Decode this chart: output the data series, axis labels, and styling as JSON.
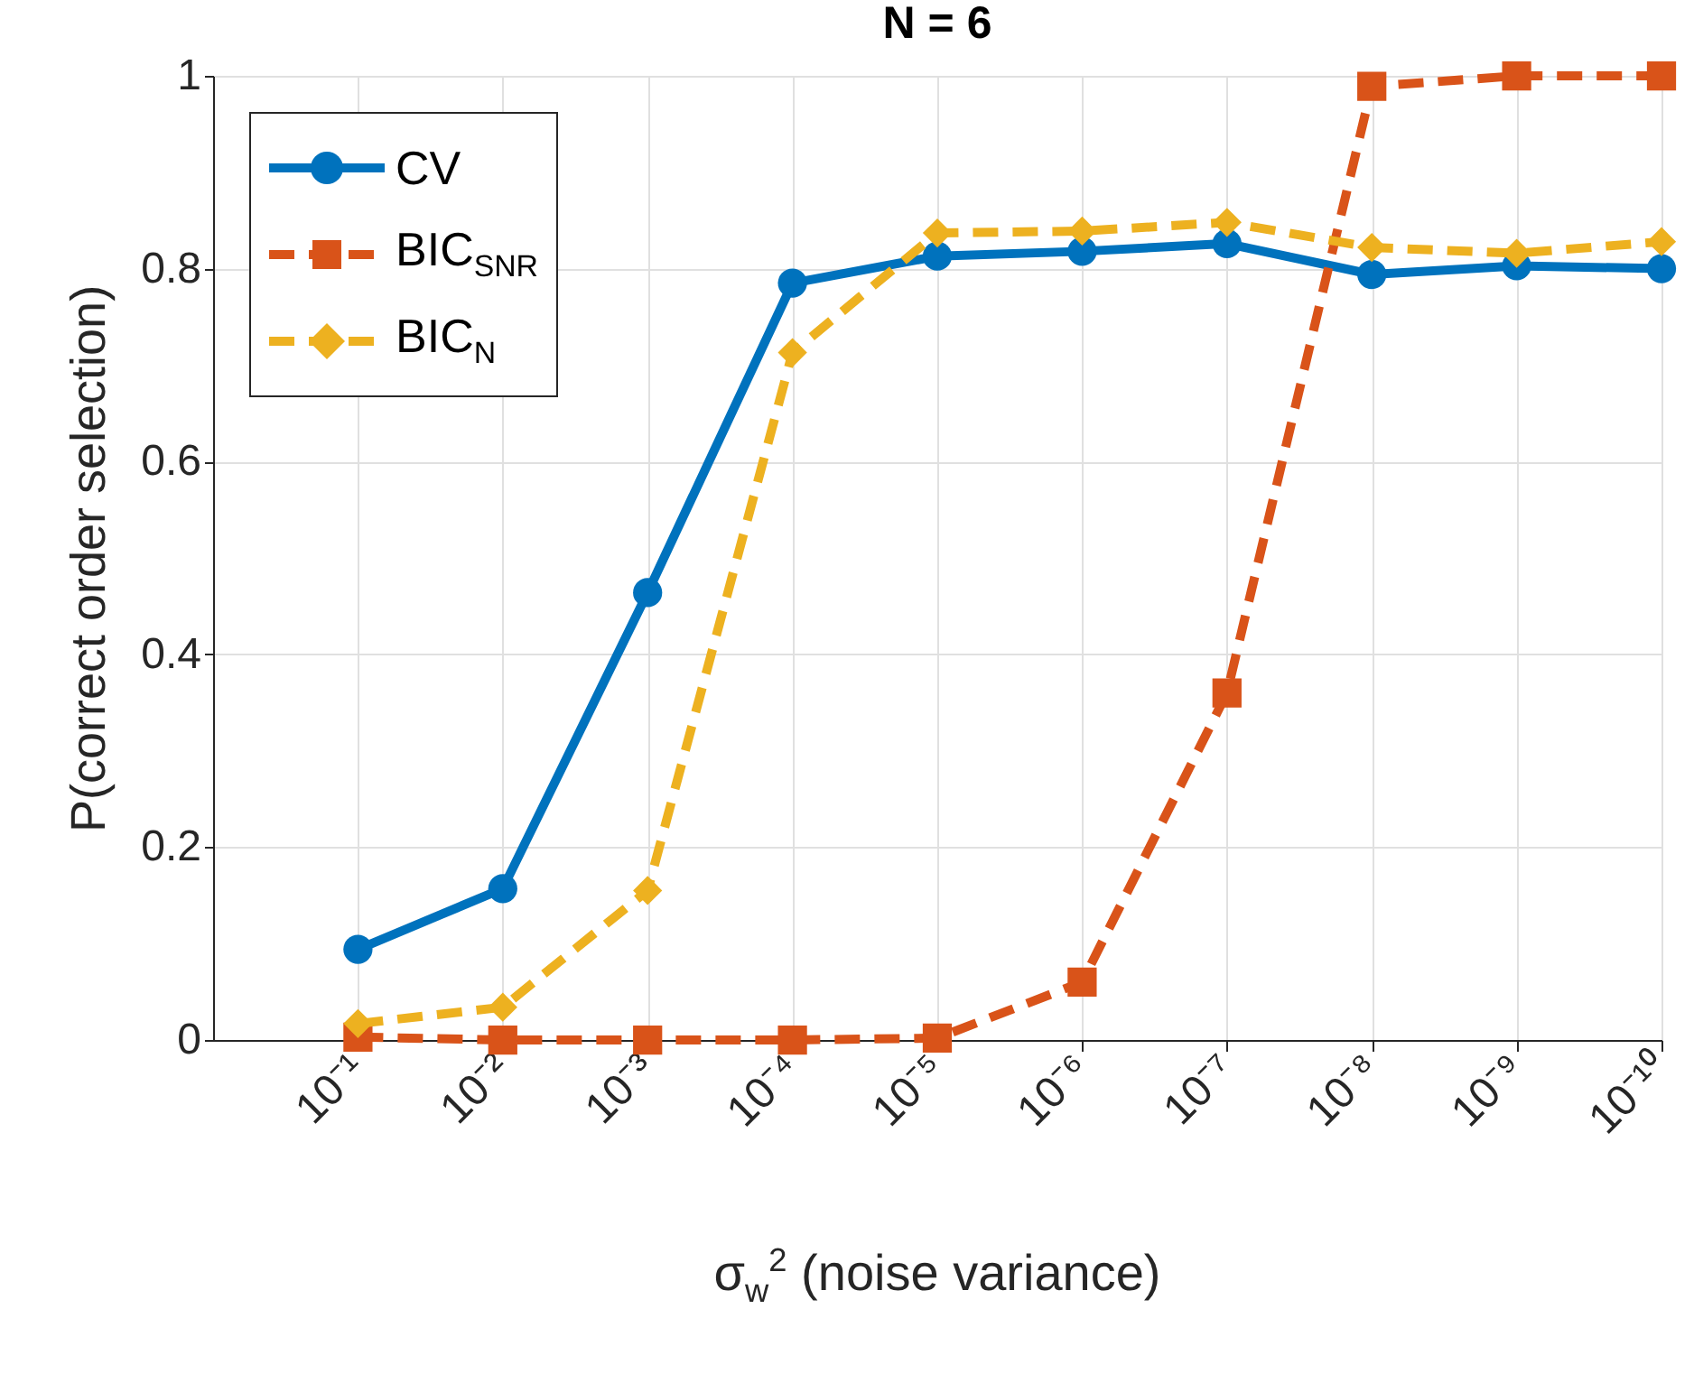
{
  "chart_data": {
    "type": "line",
    "title": "N = 6",
    "xlabel": "σ$_{w}$$^{2}$ (noise variance)",
    "ylabel": "P(correct order selection)",
    "x": [
      0.1,
      0.01,
      0.001,
      0.0001,
      1e-05,
      1e-06,
      1e-07,
      1e-08,
      1e-09,
      1e-10
    ],
    "log": "x",
    "xlim": [
      1,
      1e-10
    ],
    "xticks": [
      {
        "value": 0.1,
        "label": "10⁻¹"
      },
      {
        "value": 0.01,
        "label": "10⁻²"
      },
      {
        "value": 0.001,
        "label": "10⁻³"
      },
      {
        "value": 0.0001,
        "label": "10⁻⁴"
      },
      {
        "value": 1e-05,
        "label": "10⁻⁵"
      },
      {
        "value": 1e-06,
        "label": "10⁻⁶"
      },
      {
        "value": 1e-07,
        "label": "10⁻⁷"
      },
      {
        "value": 1e-08,
        "label": "10⁻⁸"
      },
      {
        "value": 1e-09,
        "label": "10⁻⁹"
      },
      {
        "value": 1e-10,
        "label": "10⁻¹⁰"
      }
    ],
    "ylim": [
      0,
      1
    ],
    "yticks": [
      0,
      0.2,
      0.4,
      0.6,
      0.8,
      1
    ],
    "grid": true,
    "legend": "top left",
    "series": [
      {
        "name": "CV",
        "color": "#0072bd",
        "marker": "circle",
        "line_style": "solid",
        "values": [
          0.094,
          0.157,
          0.464,
          0.785,
          0.813,
          0.818,
          0.826,
          0.794,
          0.803,
          0.8
        ]
      },
      {
        "name": "BIC$_{SNR}$",
        "color": "#d95319",
        "marker": "square",
        "line_style": "dashed",
        "values": [
          0.003,
          0,
          0,
          0,
          0.002,
          0.06,
          0.36,
          0.989,
          1,
          1
        ]
      },
      {
        "name": "BIC$_{N}$",
        "color": "#edb120",
        "marker": "diamond",
        "line_style": "dashed",
        "values": [
          0.017,
          0.034,
          0.155,
          0.713,
          0.837,
          0.839,
          0.848,
          0.822,
          0.816,
          0.828
        ]
      }
    ]
  }
}
